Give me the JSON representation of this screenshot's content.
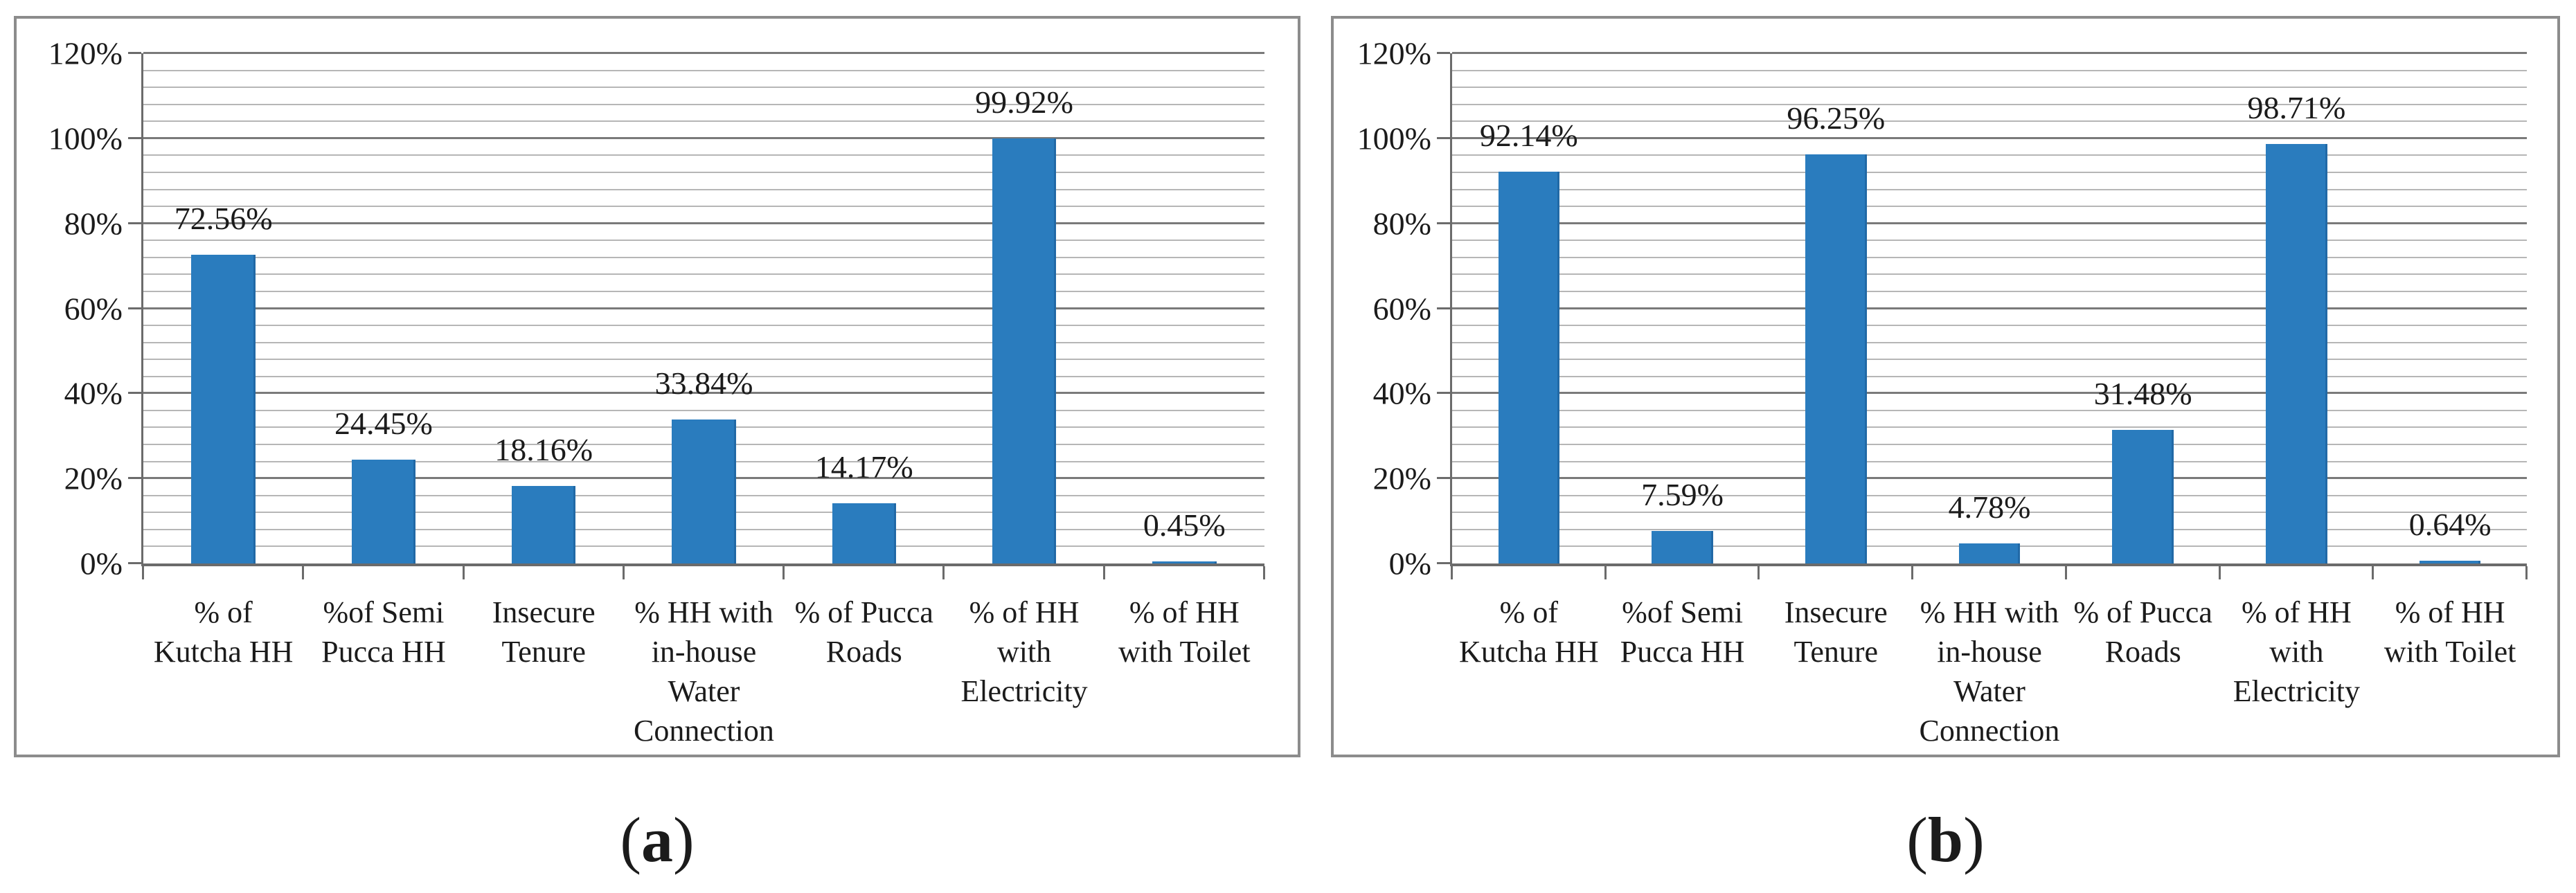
{
  "colors": {
    "bar": "#2A7CBE",
    "bar_edge": "#2169A6",
    "major_grid": "#7A7A7A",
    "minor_grid": "#B6B6B6",
    "axis": "#6B6B6B",
    "panel_border": "#8C8C8C",
    "text": "#1B1B1B"
  },
  "captions": {
    "open": "(",
    "a": "a",
    "b": "b",
    "close": ")"
  },
  "chart_data": [
    {
      "id": "a",
      "type": "bar",
      "title": "",
      "xlabel": "",
      "ylabel": "",
      "categories": [
        "% of Kutcha HH",
        "%of Semi Pucca HH",
        "Insecure Tenure",
        "% HH with in-house Water Connection",
        "% of Pucca Roads",
        "% of HH with Electricity",
        "% of HH with Toilet"
      ],
      "category_lines": [
        [
          "% of",
          "Kutcha HH"
        ],
        [
          "%of Semi",
          "Pucca HH"
        ],
        [
          "Insecure",
          "Tenure"
        ],
        [
          "% HH with",
          "in-house",
          "Water",
          "Connection"
        ],
        [
          "% of Pucca",
          "Roads"
        ],
        [
          "% of HH",
          "with",
          "Electricity"
        ],
        [
          "% of HH",
          "with Toilet"
        ]
      ],
      "values": [
        72.56,
        24.45,
        18.16,
        33.84,
        14.17,
        99.92,
        0.45
      ],
      "data_labels": [
        "72.56%",
        "24.45%",
        "18.16%",
        "33.84%",
        "14.17%",
        "99.92%",
        "0.45%"
      ],
      "ylim": [
        0,
        120
      ],
      "y_major_step": 20,
      "y_minor_step": 4,
      "y_tick_labels": [
        "0%",
        "20%",
        "40%",
        "60%",
        "80%",
        "100%",
        "120%"
      ],
      "grid": "horizontal major and minor gridlines",
      "legend": "none"
    },
    {
      "id": "b",
      "type": "bar",
      "title": "",
      "xlabel": "",
      "ylabel": "",
      "categories": [
        "% of Kutcha HH",
        "%of Semi Pucca HH",
        "Insecure Tenure",
        "% HH with in-house Water Connection",
        "% of Pucca Roads",
        "% of HH with Electricity",
        "% of HH with Toilet"
      ],
      "category_lines": [
        [
          "% of",
          "Kutcha HH"
        ],
        [
          "%of Semi",
          "Pucca HH"
        ],
        [
          "Insecure",
          "Tenure"
        ],
        [
          "% HH with",
          "in-house",
          "Water",
          "Connection"
        ],
        [
          "% of Pucca",
          "Roads"
        ],
        [
          "% of HH",
          "with",
          "Electricity"
        ],
        [
          "% of HH",
          "with Toilet"
        ]
      ],
      "values": [
        92.14,
        7.59,
        96.25,
        4.78,
        31.48,
        98.71,
        0.64
      ],
      "data_labels": [
        "92.14%",
        "7.59%",
        "96.25%",
        "4.78%",
        "31.48%",
        "98.71%",
        "0.64%"
      ],
      "ylim": [
        0,
        120
      ],
      "y_major_step": 20,
      "y_minor_step": 4,
      "y_tick_labels": [
        "0%",
        "20%",
        "40%",
        "60%",
        "80%",
        "100%",
        "120%"
      ],
      "grid": "horizontal major and minor gridlines",
      "legend": "none"
    }
  ]
}
